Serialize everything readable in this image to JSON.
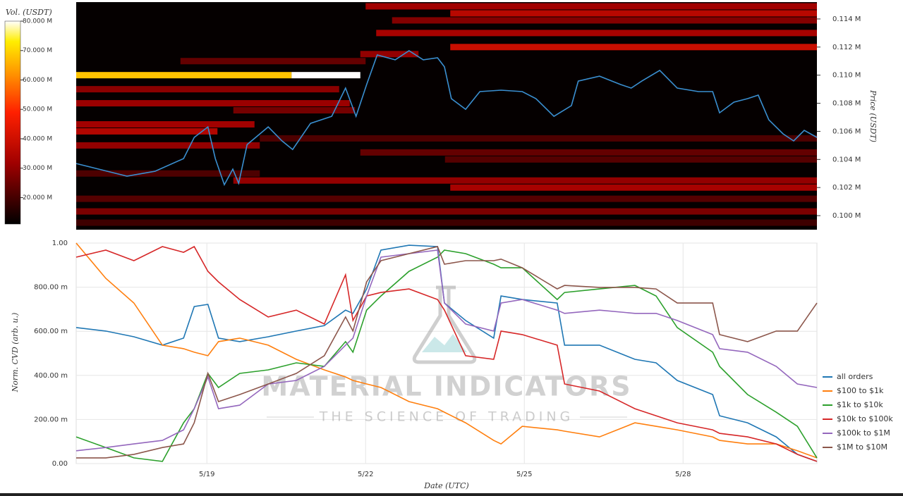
{
  "chart_data": [
    {
      "type": "heatmap",
      "xlim": [
        16.53,
        30.53
      ],
      "ylim": [
        0.099,
        0.1152
      ],
      "yticks": [
        {
          "value": 0.1,
          "label": "0.100 M"
        },
        {
          "value": 0.102,
          "label": "0.102 M"
        },
        {
          "value": 0.104,
          "label": "0.104 M"
        },
        {
          "value": 0.106,
          "label": "0.106 M"
        },
        {
          "value": 0.108,
          "label": "0.108 M"
        },
        {
          "value": 0.11,
          "label": "0.110 M"
        },
        {
          "value": 0.112,
          "label": "0.112 M"
        },
        {
          "value": 0.114,
          "label": "0.114 M"
        }
      ],
      "ylabel": "Price (USDT)",
      "color": "#3a8fd0",
      "x": [
        16.53,
        16.96,
        17.49,
        18.02,
        18.56,
        18.76,
        19.02,
        19.16,
        19.33,
        19.49,
        19.6,
        19.76,
        20.16,
        20.42,
        20.62,
        20.96,
        21.36,
        21.62,
        21.82,
        22.02,
        22.22,
        22.56,
        22.82,
        23.09,
        23.36,
        23.49,
        23.62,
        23.89,
        24.16,
        24.56,
        24.96,
        25.22,
        25.56,
        25.89,
        26.02,
        26.42,
        26.82,
        27.02,
        27.22,
        27.56,
        27.89,
        28.29,
        28.56,
        28.69,
        28.96,
        29.22,
        29.42,
        29.62,
        29.89,
        30.09,
        30.29,
        30.53
      ],
      "values": [
        0.10371,
        0.10331,
        0.10281,
        0.10316,
        0.10406,
        0.10557,
        0.10632,
        0.10406,
        0.1022,
        0.10331,
        0.1023,
        0.10506,
        0.10632,
        0.10532,
        0.10471,
        0.10657,
        0.10707,
        0.10908,
        0.10707,
        0.10933,
        0.11144,
        0.11109,
        0.11174,
        0.11109,
        0.11124,
        0.11059,
        0.10833,
        0.10757,
        0.10883,
        0.10893,
        0.10883,
        0.10833,
        0.10707,
        0.10783,
        0.10958,
        0.10993,
        0.10933,
        0.10908,
        0.10958,
        0.11034,
        0.10908,
        0.10883,
        0.10883,
        0.10732,
        0.10808,
        0.10833,
        0.10858,
        0.10682,
        0.10582,
        0.10532,
        0.10607,
        0.10557
      ],
      "levels": [
        {
          "price": 0.1149,
          "start": 22.0,
          "end": 30.53,
          "volume": 32
        },
        {
          "price": 0.1144,
          "start": 23.6,
          "end": 30.53,
          "volume": 36
        },
        {
          "price": 0.1139,
          "start": 22.5,
          "end": 30.53,
          "volume": 28
        },
        {
          "price": 0.113,
          "start": 22.2,
          "end": 30.53,
          "volume": 33
        },
        {
          "price": 0.112,
          "start": 23.6,
          "end": 30.53,
          "volume": 39
        },
        {
          "price": 0.1115,
          "start": 21.9,
          "end": 23.0,
          "volume": 30
        },
        {
          "price": 0.111,
          "start": 18.5,
          "end": 22.0,
          "volume": 24
        },
        {
          "price": 0.11,
          "start": 16.53,
          "end": 20.6,
          "volume": 68
        },
        {
          "price": 0.11,
          "start": 20.6,
          "end": 21.9,
          "volume": 80
        },
        {
          "price": 0.109,
          "start": 16.53,
          "end": 21.5,
          "volume": 29
        },
        {
          "price": 0.108,
          "start": 16.53,
          "end": 21.7,
          "volume": 31
        },
        {
          "price": 0.1075,
          "start": 19.5,
          "end": 21.8,
          "volume": 26
        },
        {
          "price": 0.1065,
          "start": 16.53,
          "end": 19.9,
          "volume": 32
        },
        {
          "price": 0.106,
          "start": 16.53,
          "end": 19.2,
          "volume": 35
        },
        {
          "price": 0.1055,
          "start": 20.0,
          "end": 30.53,
          "volume": 21
        },
        {
          "price": 0.105,
          "start": 16.53,
          "end": 20.0,
          "volume": 30
        },
        {
          "price": 0.1045,
          "start": 21.9,
          "end": 30.53,
          "volume": 24
        },
        {
          "price": 0.104,
          "start": 23.5,
          "end": 30.53,
          "volume": 22
        },
        {
          "price": 0.103,
          "start": 16.53,
          "end": 20.0,
          "volume": 21
        },
        {
          "price": 0.1025,
          "start": 19.5,
          "end": 30.53,
          "volume": 30
        },
        {
          "price": 0.102,
          "start": 23.6,
          "end": 30.53,
          "volume": 33
        },
        {
          "price": 0.1012,
          "start": 16.53,
          "end": 30.53,
          "volume": 22
        },
        {
          "price": 0.1003,
          "start": 16.53,
          "end": 30.53,
          "volume": 27
        },
        {
          "price": 0.0995,
          "start": 16.53,
          "end": 30.53,
          "volume": 19
        }
      ],
      "colorbar": {
        "label": "Vol. (USDT)",
        "clim": [
          11,
          80
        ],
        "ticks": [
          {
            "value": 20,
            "label": "20.000 M"
          },
          {
            "value": 30,
            "label": "30.000 M"
          },
          {
            "value": 40,
            "label": "40.000 M"
          },
          {
            "value": 50,
            "label": "50.000 M"
          },
          {
            "value": 60,
            "label": "60.000 M"
          },
          {
            "value": 70,
            "label": "70.000 M"
          },
          {
            "value": 80,
            "label": "80.000 M"
          }
        ]
      }
    },
    {
      "type": "line",
      "xlabel": "Date (UTC)",
      "ylabel": "Norm. CVD (arb. u.)",
      "xlim": [
        16.53,
        30.53
      ],
      "xticks": [
        {
          "value": 19,
          "label": "5/19"
        },
        {
          "value": 22,
          "label": "5/22"
        },
        {
          "value": 25,
          "label": "5/25"
        },
        {
          "value": 28,
          "label": "5/28"
        }
      ],
      "ylim": [
        0,
        1
      ],
      "yticks": [
        {
          "value": 0,
          "label": "0.00"
        },
        {
          "value": 0.2,
          "label": "200.00 m"
        },
        {
          "value": 0.4,
          "label": "400.00 m"
        },
        {
          "value": 0.6,
          "label": "600.00 m"
        },
        {
          "value": 0.8,
          "label": "800.00 m"
        },
        {
          "value": 1,
          "label": "1.00"
        }
      ],
      "grid": true,
      "legend": "right",
      "x": [
        16.53,
        17.09,
        17.62,
        18.16,
        18.56,
        18.76,
        19.02,
        19.22,
        19.62,
        20.16,
        20.69,
        21.22,
        21.62,
        21.76,
        22.02,
        22.29,
        22.82,
        23.36,
        23.49,
        23.89,
        24.42,
        24.56,
        24.96,
        25.62,
        25.76,
        26.42,
        27.09,
        27.49,
        27.89,
        28.56,
        28.69,
        29.22,
        29.76,
        30.16,
        30.53
      ],
      "series": [
        {
          "name": "all orders",
          "color": "#1f77b4",
          "values": [
            0.617,
            0.601,
            0.575,
            0.537,
            0.569,
            0.712,
            0.722,
            0.569,
            0.553,
            0.575,
            0.601,
            0.626,
            0.696,
            0.681,
            0.792,
            0.968,
            0.99,
            0.984,
            0.728,
            0.649,
            0.569,
            0.76,
            0.744,
            0.728,
            0.537,
            0.537,
            0.473,
            0.457,
            0.377,
            0.313,
            0.217,
            0.185,
            0.121,
            0.042,
            0.01
          ]
        },
        {
          "name": "$100 to $1k",
          "color": "#ff7f0e",
          "values": [
            1.0,
            0.84,
            0.728,
            0.537,
            0.521,
            0.505,
            0.489,
            0.553,
            0.569,
            0.537,
            0.473,
            0.425,
            0.393,
            0.377,
            0.361,
            0.345,
            0.281,
            0.249,
            0.233,
            0.185,
            0.105,
            0.089,
            0.169,
            0.153,
            0.147,
            0.121,
            0.185,
            0.169,
            0.153,
            0.121,
            0.105,
            0.089,
            0.089,
            0.058,
            0.026
          ]
        },
        {
          "name": "$1k to $10k",
          "color": "#2ca02c",
          "values": [
            0.121,
            0.073,
            0.026,
            0.01,
            0.185,
            0.249,
            0.409,
            0.345,
            0.409,
            0.425,
            0.457,
            0.441,
            0.553,
            0.505,
            0.696,
            0.76,
            0.872,
            0.936,
            0.968,
            0.952,
            0.904,
            0.888,
            0.888,
            0.744,
            0.776,
            0.792,
            0.808,
            0.76,
            0.617,
            0.505,
            0.441,
            0.313,
            0.233,
            0.169,
            0.026
          ]
        },
        {
          "name": "$10k to $100k",
          "color": "#d62728",
          "values": [
            0.936,
            0.968,
            0.92,
            0.984,
            0.958,
            0.984,
            0.872,
            0.824,
            0.744,
            0.665,
            0.696,
            0.633,
            0.856,
            0.649,
            0.76,
            0.776,
            0.792,
            0.744,
            0.696,
            0.489,
            0.473,
            0.601,
            0.585,
            0.537,
            0.361,
            0.329,
            0.249,
            0.217,
            0.185,
            0.153,
            0.137,
            0.121,
            0.089,
            0.042,
            0.01
          ]
        },
        {
          "name": "$100k to $1M",
          "color": "#9467bd",
          "values": [
            0.058,
            0.073,
            0.089,
            0.105,
            0.153,
            0.249,
            0.393,
            0.249,
            0.265,
            0.361,
            0.377,
            0.441,
            0.537,
            0.569,
            0.76,
            0.936,
            0.952,
            0.968,
            0.728,
            0.633,
            0.601,
            0.728,
            0.744,
            0.696,
            0.681,
            0.696,
            0.681,
            0.681,
            0.649,
            0.585,
            0.521,
            0.505,
            0.441,
            0.361,
            0.345
          ]
        },
        {
          "name": "$1M to $10M",
          "color": "#8c564b",
          "values": [
            0.026,
            0.026,
            0.042,
            0.073,
            0.089,
            0.185,
            0.409,
            0.281,
            0.313,
            0.361,
            0.409,
            0.489,
            0.665,
            0.601,
            0.824,
            0.92,
            0.952,
            0.984,
            0.904,
            0.92,
            0.92,
            0.927,
            0.888,
            0.792,
            0.808,
            0.799,
            0.799,
            0.792,
            0.728,
            0.728,
            0.585,
            0.553,
            0.601,
            0.601,
            0.728
          ]
        }
      ]
    }
  ],
  "watermark": {
    "title": "MATERIAL INDICATORS",
    "tagline": "THE SCIENCE OF TRADING"
  }
}
